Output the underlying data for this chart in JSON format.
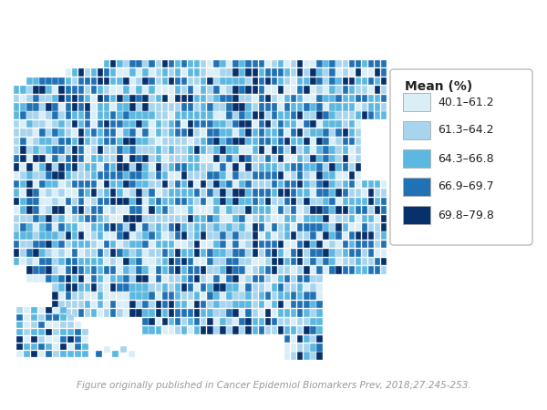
{
  "caption": "Figure originally published in Cancer Epidemiol Biomarkers Prev, 2018;27:245-253.",
  "legend_title": "Mean (%)",
  "legend_labels": [
    "40.1–61.2",
    "61.3–64.2",
    "64.3–66.8",
    "66.9–69.7",
    "69.8–79.8"
  ],
  "colors": [
    "#daeef7",
    "#a8d5ed",
    "#5cb8e0",
    "#2171b5",
    "#08306b"
  ],
  "background_color": "#ffffff",
  "caption_color": "#999999",
  "caption_fontsize": 7.5,
  "legend_fontsize": 9,
  "legend_title_fontsize": 10,
  "figsize": [
    6.0,
    4.5
  ],
  "dpi": 100,
  "color_probs": [
    0.15,
    0.22,
    0.26,
    0.23,
    0.14
  ]
}
